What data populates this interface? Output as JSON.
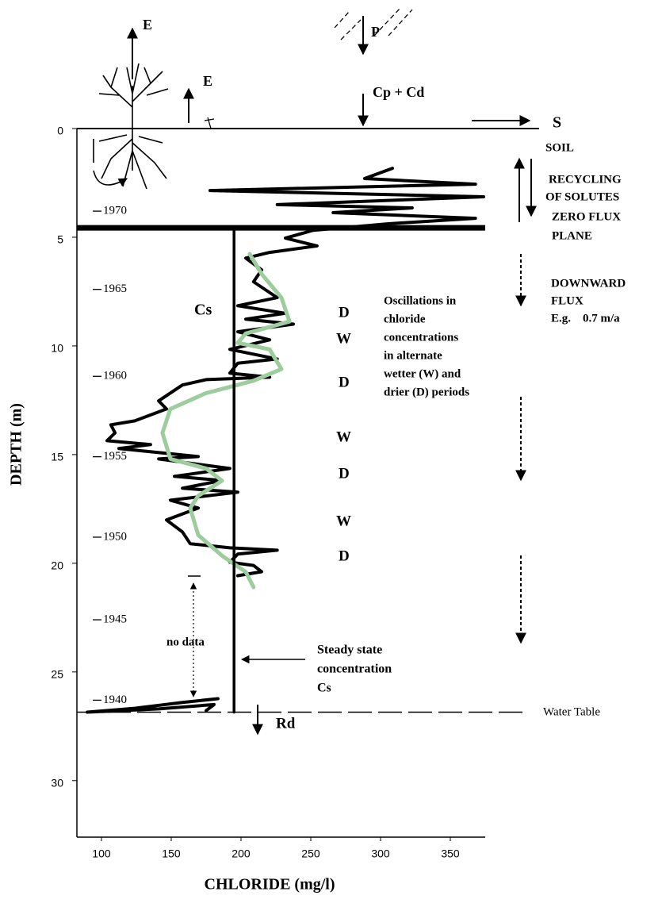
{
  "chart_data": {
    "type": "line",
    "xlabel": "CHLORIDE (mg/l)",
    "ylabel": "DEPTH (m)",
    "xlim": [
      82.4,
      375
    ],
    "ylim": [
      0,
      32.6
    ],
    "y_inverted": true,
    "xticks": [
      100,
      150,
      200,
      250,
      300,
      350
    ],
    "yticks": [
      0,
      5,
      10,
      15,
      20,
      25,
      30
    ],
    "series": [
      {
        "color": "#000000",
        "x": [
          308.5,
          288.6,
          368,
          177.8,
          373.9,
          226,
          322.7,
          266,
          368,
          305.7,
          251.7,
          231.8,
          254.5,
          220.5,
          203.4,
          214.8,
          209,
          226,
          197.7,
          231.8,
          203.4,
          237.5,
          197.7,
          220.5,
          192,
          226,
          197.7,
          192,
          220.5,
          175,
          158,
          141,
          146.6,
          123.9,
          106.8,
          109.7,
          104,
          135.2,
          112.5,
          169.3,
          141,
          192,
          152.3,
          186.4,
          158,
          197.7,
          149.4,
          169.3,
          146.6,
          158,
          163.6,
          192,
          226,
          197.7,
          192,
          209,
          214.8,
          197.7,
          null,
          183.5,
          158,
          123.9,
          89.8,
          141,
          180.7,
          175
        ],
        "values": [
          1.83,
          2.3,
          2.56,
          2.85,
          3.14,
          3.5,
          3.65,
          3.87,
          4.13,
          4.38,
          4.68,
          5.04,
          5.4,
          5.7,
          5.96,
          6.5,
          7.05,
          7.78,
          8.15,
          8.5,
          8.77,
          9.0,
          9.35,
          9.72,
          10.16,
          10.6,
          10.8,
          11.25,
          11.44,
          11.55,
          11.8,
          12.53,
          12.9,
          13.45,
          13.63,
          14.0,
          14.36,
          14.54,
          14.72,
          15.09,
          15.2,
          15.64,
          16.0,
          16.19,
          16.55,
          16.73,
          17.1,
          17.46,
          18.01,
          18.56,
          19.1,
          19.29,
          19.4,
          19.58,
          19.95,
          20.1,
          20.39,
          20.57,
          null,
          26.23,
          26.4,
          26.67,
          26.85,
          26.7,
          26.5,
          26.78
        ]
      },
      {
        "color": "#9dcc9d",
        "x": [
          209,
          203.4,
          186.4,
          169.3,
          163.6,
          169.3,
          186.4,
          175,
          149.4,
          143.7,
          149.4,
          175,
          209,
          228.9,
          220.5,
          197.7,
          203.4,
          234.7,
          229,
          214.8,
          206.25
        ],
        "values": [
          21.1,
          20.4,
          19.65,
          18.7,
          17.46,
          16.9,
          16.2,
          15.64,
          15.2,
          14.0,
          12.9,
          12.17,
          11.6,
          11.07,
          10.16,
          9.86,
          9.43,
          8.88,
          7.78,
          6.69,
          5.77
        ]
      },
      {
        "color": "#000000",
        "x": [
          195,
          195
        ],
        "values": [
          4.6,
          26.85
        ]
      }
    ],
    "zero_flux_plane": 4.57,
    "water_table": 26.85,
    "years": [
      {
        "value": 3.8,
        "label": "1970"
      },
      {
        "value": 7.4,
        "label": "1965"
      },
      {
        "value": 11.4,
        "label": "1960"
      },
      {
        "value": 15.1,
        "label": "1955"
      },
      {
        "value": 18.8,
        "label": "1950"
      },
      {
        "value": 22.6,
        "label": "1945"
      },
      {
        "value": 26.3,
        "label": "1940"
      }
    ],
    "annotations": [
      "E",
      "E",
      "P",
      "Cp + Cd",
      "S",
      "SOIL",
      "RECYCLING",
      "OF SOLUTES",
      "ZERO FLUX",
      "PLANE",
      "DOWNWARD",
      "FLUX",
      "E.g.    0.7 m/a",
      "Cs",
      "Oscillations in",
      "chloride",
      "concentrations",
      "in alternate",
      "wetter (W) and",
      "drier (D) periods",
      "D",
      "W",
      "D",
      "W",
      "D",
      "W",
      "D",
      "no data",
      "Steady state",
      "concentration",
      "Cs",
      "Rd",
      "Water Table"
    ]
  }
}
